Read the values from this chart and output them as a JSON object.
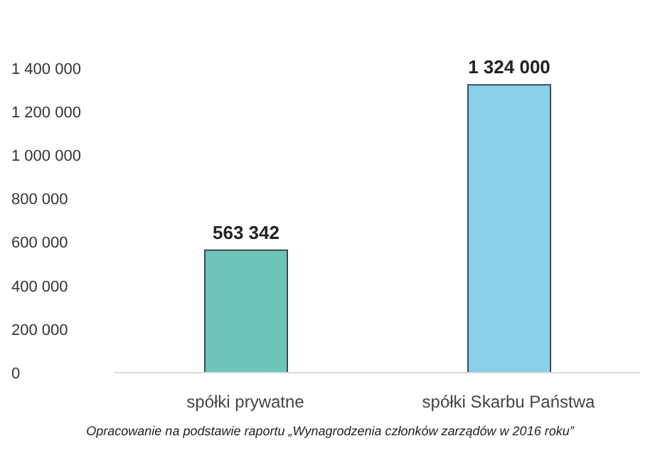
{
  "chart_data": {
    "type": "bar",
    "categories": [
      "spółki prywatne",
      "spółki Skarbu Państwa"
    ],
    "values": [
      563342,
      1324000
    ],
    "colors": [
      "#6cc5b8",
      "#87d0e8"
    ],
    "ylim": [
      0,
      1400000
    ],
    "yticks": [
      {
        "value": 0,
        "label": "0"
      },
      {
        "value": 200000,
        "label": "200 000"
      },
      {
        "value": 400000,
        "label": "400 000"
      },
      {
        "value": 600000,
        "label": "600 000"
      },
      {
        "value": 800000,
        "label": "800 000"
      },
      {
        "value": 1000000,
        "label": "1 000 000"
      },
      {
        "value": 1200000,
        "label": "1 200 000"
      },
      {
        "value": 1400000,
        "label": "1 400 000"
      }
    ],
    "value_labels": [
      "563 342",
      "1 324 000"
    ],
    "grid": false,
    "annotations": [
      "Opracowanie na podstawie raportu „Wynagrodzenia członków zarządów w 2016 roku”"
    ]
  }
}
